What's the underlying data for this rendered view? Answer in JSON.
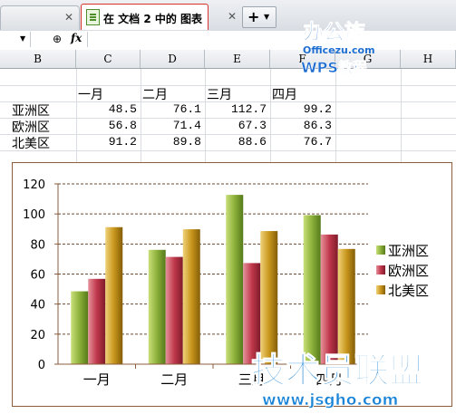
{
  "tabs": [
    {
      "label": "在 文档 2 中的 图表",
      "active": true
    }
  ],
  "formula_bar": {
    "fx_label": "fx",
    "name_box_value": ""
  },
  "columns": [
    "B",
    "C",
    "D",
    "E",
    "F",
    "G",
    "H"
  ],
  "table": {
    "headers": [
      "一月",
      "二月",
      "三月",
      "四月"
    ],
    "rows": [
      {
        "label": "亚洲区",
        "values": [
          "48.5",
          "76.1",
          "112.7",
          "99.2"
        ]
      },
      {
        "label": "欧洲区",
        "values": [
          "56.8",
          "71.4",
          "67.3",
          "86.3"
        ]
      },
      {
        "label": "北美区",
        "values": [
          "91.2",
          "89.8",
          "88.6",
          "76.7"
        ]
      }
    ]
  },
  "watermarks": {
    "top_line1": "办公族",
    "top_line2": "Officezu.com",
    "top_line3": "WPS教程",
    "bottom_line1": "技术员联盟",
    "bottom_line2": "www.jsgho.com"
  },
  "chart_data": {
    "type": "bar",
    "categories": [
      "一月",
      "二月",
      "三月",
      "四月"
    ],
    "series": [
      {
        "name": "亚洲区",
        "values": [
          48.5,
          76.1,
          112.7,
          99.2
        ],
        "color": "#8cb03a"
      },
      {
        "name": "欧洲区",
        "values": [
          56.8,
          71.4,
          67.3,
          86.3
        ],
        "color": "#c0384b"
      },
      {
        "name": "北美区",
        "values": [
          91.2,
          89.8,
          88.6,
          76.7
        ],
        "color": "#c8961c"
      }
    ],
    "yticks": [
      "0",
      "20",
      "40",
      "60",
      "80",
      "100",
      "120"
    ],
    "ylim": [
      0,
      120
    ],
    "grid": true,
    "legend_position": "right"
  }
}
